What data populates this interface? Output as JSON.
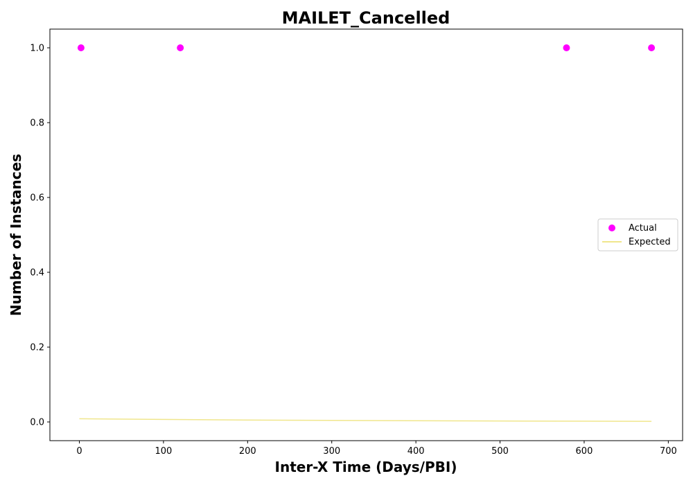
{
  "chart_data": {
    "type": "scatter",
    "title": "MAILET_Cancelled",
    "xlabel": "Inter-X Time (Days/PBI)",
    "ylabel": "Number of Instances",
    "xlim": [
      -35,
      717
    ],
    "ylim": [
      -0.05,
      1.05
    ],
    "xticks": [
      0,
      100,
      200,
      300,
      400,
      500,
      600,
      700
    ],
    "xtick_labels": [
      "0",
      "100",
      "200",
      "300",
      "400",
      "500",
      "600",
      "700"
    ],
    "yticks": [
      0.0,
      0.2,
      0.4,
      0.6,
      0.8,
      1.0
    ],
    "ytick_labels": [
      "0.0",
      "0.2",
      "0.4",
      "0.6",
      "0.8",
      "1.0"
    ],
    "grid": false,
    "legend_position": "center-right",
    "series": [
      {
        "name": "Actual",
        "kind": "scatter",
        "color": "#ff00ff",
        "x": [
          2,
          120,
          579,
          680
        ],
        "y": [
          1,
          1,
          1,
          1
        ]
      },
      {
        "name": "Expected",
        "kind": "line",
        "color": "#f0e68c",
        "x": [
          0,
          100,
          200,
          300,
          400,
          500,
          600,
          680
        ],
        "y": [
          0.0085,
          0.0066,
          0.0052,
          0.0041,
          0.0033,
          0.0026,
          0.0021,
          0.0017
        ]
      }
    ]
  }
}
